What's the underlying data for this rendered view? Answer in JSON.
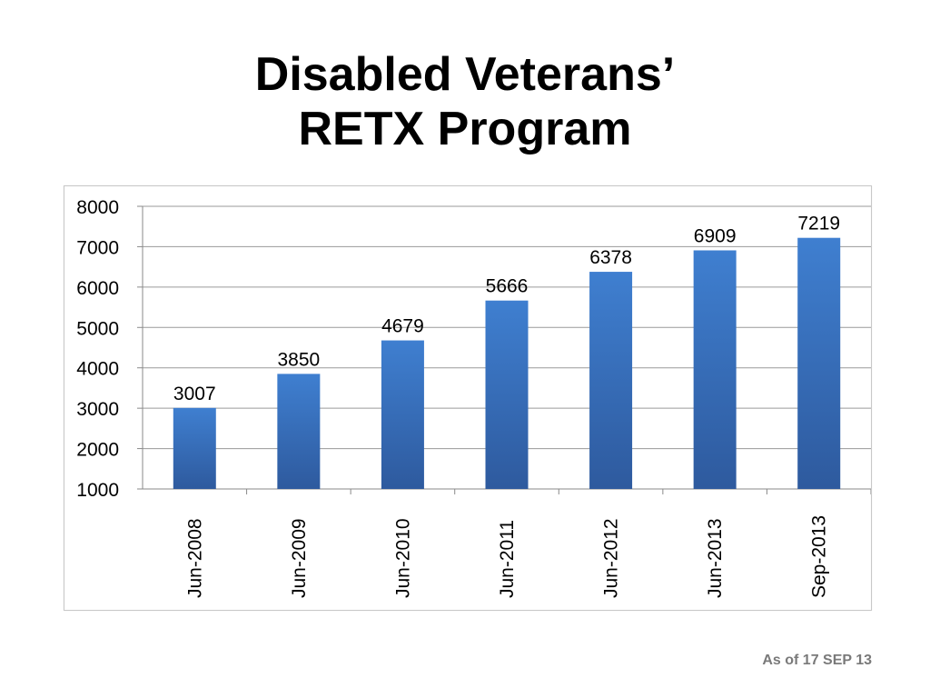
{
  "slide": {
    "title_line1": "Disabled Veterans’",
    "title_line2": "RETX Program",
    "footer": "As of 17 SEP 13"
  },
  "chart_data": {
    "type": "bar",
    "title": "Disabled Veterans’ RETX Program",
    "categories": [
      "Jun-2008",
      "Jun-2009",
      "Jun-2010",
      "Jun-2011",
      "Jun-2012",
      "Jun-2013",
      "Sep-2013"
    ],
    "values": [
      3007,
      3850,
      4679,
      5666,
      6378,
      6909,
      7219
    ],
    "xlabel": "",
    "ylabel": "",
    "ylim": [
      1000,
      8000
    ],
    "yticks": [
      1000,
      2000,
      3000,
      4000,
      5000,
      6000,
      7000,
      8000
    ],
    "grid": true,
    "legend": "none",
    "bar_color_top": "#3f7fd0",
    "bar_color_bottom": "#2e5a9e",
    "grid_color": "#9a9a9a"
  }
}
